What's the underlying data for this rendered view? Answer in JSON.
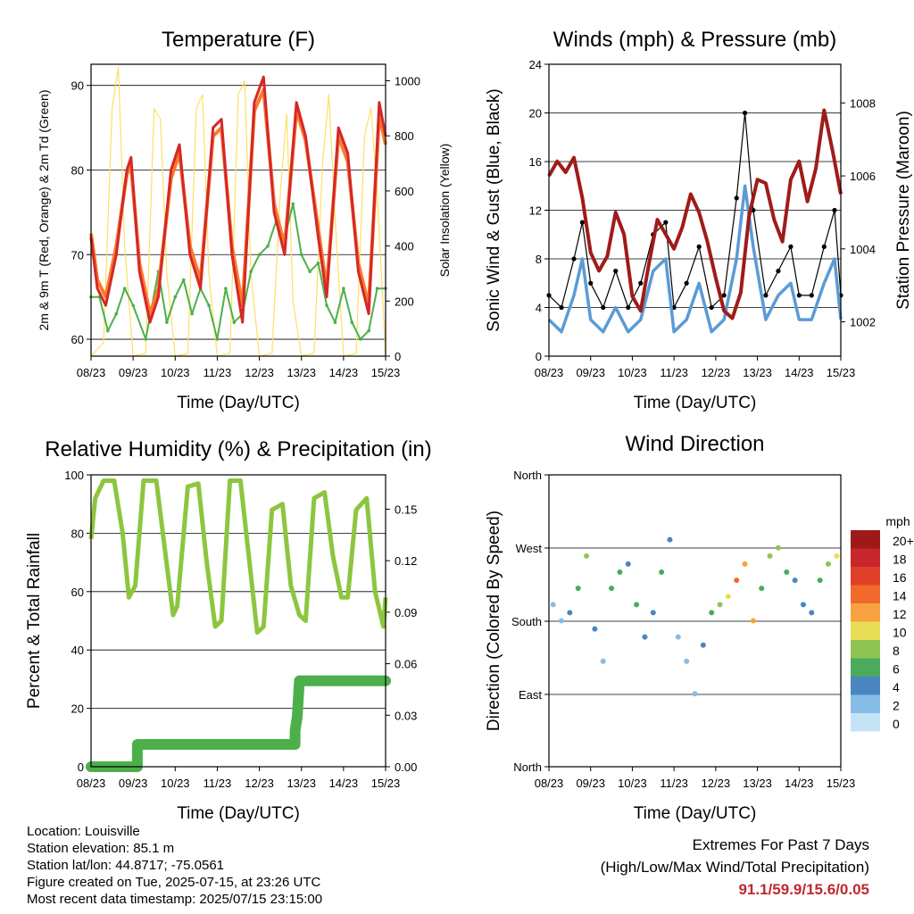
{
  "footer": {
    "location": "Location: Louisville",
    "elevation": "Station elevation: 85.1 m",
    "latlon": "Station lat/lon: 44.8717; -75.0561",
    "created": "Figure created on Tue, 2025-07-15, at 23:26 UTC",
    "recent": "Most recent data timestamp: 2025/07/15 23:15:00",
    "extremes_title": "Extremes For Past 7 Days",
    "extremes_subtitle": "(High/Low/Max Wind/Total Precipitation)",
    "extremes_values": "91.1/59.9/15.6/0.05"
  },
  "colors": {
    "temp_2m": "#d62728",
    "temp_9m": "#f97a2b",
    "dewpoint": "#4daf4a",
    "solar": "#fde062",
    "wind": "#5b9bd5",
    "gust": "#000000",
    "pressure": "#a01b1b",
    "rh": "#8cc63f",
    "precip": "#4daf4a"
  },
  "chart_data": [
    {
      "type": "line",
      "title": "Temperature (F)",
      "xlabel": "Time (Day/UTC)",
      "ylabel": "2m & 9m T (Red, Orange) & 2m Td (Green)",
      "y2label": "Solar Insolation (Yellow)",
      "xticks": [
        "08/23",
        "09/23",
        "10/23",
        "11/23",
        "12/23",
        "13/23",
        "14/23",
        "15/23"
      ],
      "xlim": [
        0,
        7
      ],
      "ylim": [
        58,
        92.5
      ],
      "yticks": [
        60,
        70,
        80,
        90
      ],
      "y2lim": [
        0,
        1060
      ],
      "y2ticks": [
        0,
        200,
        400,
        600,
        800,
        1000
      ],
      "series": [
        {
          "name": "2m T",
          "color": "#d62728",
          "x": [
            0,
            0.15,
            0.35,
            0.6,
            0.85,
            0.95,
            1.15,
            1.4,
            1.6,
            1.9,
            2.1,
            2.35,
            2.6,
            2.9,
            3.1,
            3.35,
            3.6,
            3.88,
            4.1,
            4.35,
            4.6,
            4.88,
            5.1,
            5.4,
            5.6,
            5.88,
            6.1,
            6.35,
            6.6,
            6.85,
            7
          ],
          "values": [
            72,
            66,
            64,
            70,
            80,
            81.5,
            68,
            62,
            65,
            80,
            83,
            70,
            66,
            85,
            86,
            70,
            62,
            88,
            91,
            75,
            70,
            88,
            84,
            72,
            65,
            85,
            82,
            68,
            63,
            88,
            84
          ]
        },
        {
          "name": "9m T",
          "color": "#f97a2b",
          "x": [
            0,
            0.15,
            0.35,
            0.6,
            0.85,
            0.95,
            1.15,
            1.4,
            1.6,
            1.9,
            2.1,
            2.35,
            2.6,
            2.9,
            3.1,
            3.35,
            3.6,
            3.88,
            4.1,
            4.35,
            4.6,
            4.88,
            5.1,
            5.4,
            5.6,
            5.88,
            6.1,
            6.35,
            6.6,
            6.85,
            7
          ],
          "values": [
            72.5,
            67,
            65,
            71,
            79.5,
            80.5,
            69,
            63,
            66,
            79,
            82,
            71,
            67,
            84,
            85,
            71,
            64,
            87,
            89.5,
            76,
            71,
            87,
            83.5,
            73,
            66,
            84,
            81,
            69,
            64,
            86.5,
            83
          ]
        },
        {
          "name": "2m Td",
          "color": "#4daf4a",
          "x": [
            0,
            0.2,
            0.4,
            0.6,
            0.8,
            1.0,
            1.3,
            1.6,
            1.8,
            2.0,
            2.2,
            2.4,
            2.6,
            2.8,
            3.0,
            3.2,
            3.4,
            3.6,
            3.8,
            4.0,
            4.2,
            4.4,
            4.6,
            4.8,
            5.0,
            5.2,
            5.4,
            5.6,
            5.8,
            6.0,
            6.2,
            6.4,
            6.6,
            6.8,
            7
          ],
          "values": [
            65,
            65,
            61,
            63,
            66,
            64,
            60,
            68,
            62,
            65,
            67,
            63,
            66,
            64,
            60,
            66,
            62,
            63,
            68,
            70,
            71,
            74,
            72,
            76,
            70,
            68,
            69,
            64,
            62,
            66,
            62,
            60,
            61,
            66,
            66
          ]
        },
        {
          "name": "Solar Insolation",
          "axis": "y2",
          "color": "#fde062",
          "x": [
            0,
            0.3,
            0.5,
            0.65,
            0.8,
            1.0,
            1.3,
            1.5,
            1.65,
            1.8,
            2.0,
            2.3,
            2.5,
            2.65,
            2.8,
            3.0,
            3.3,
            3.5,
            3.65,
            3.8,
            4.0,
            4.3,
            4.5,
            4.65,
            4.8,
            5.0,
            5.3,
            5.5,
            5.65,
            5.8,
            6.0,
            6.3,
            6.5,
            6.65,
            6.8,
            7
          ],
          "values": [
            0,
            50,
            900,
            1050,
            400,
            0,
            10,
            900,
            860,
            300,
            0,
            10,
            900,
            950,
            300,
            0,
            10,
            950,
            1000,
            300,
            0,
            10,
            600,
            880,
            200,
            0,
            10,
            700,
            950,
            500,
            0,
            10,
            800,
            900,
            600,
            0
          ]
        }
      ]
    },
    {
      "type": "line",
      "title": "Winds (mph) & Pressure (mb)",
      "xlabel": "Time (Day/UTC)",
      "ylabel": "Sonic Wind & Gust (Blue, Black)",
      "y2label": "Station Pressure (Maroon)",
      "xticks": [
        "08/23",
        "09/23",
        "10/23",
        "11/23",
        "12/23",
        "13/23",
        "14/23",
        "15/23"
      ],
      "xlim": [
        0,
        7
      ],
      "ylim": [
        0,
        24
      ],
      "yticks": [
        0,
        4,
        8,
        12,
        16,
        20,
        24
      ],
      "y2lim": [
        1001.06,
        1009.06
      ],
      "y2ticks": [
        1002,
        1004,
        1006,
        1008
      ],
      "series": [
        {
          "name": "Sonic Wind",
          "color": "#5b9bd5",
          "x": [
            0,
            0.3,
            0.6,
            0.8,
            1.0,
            1.3,
            1.6,
            1.9,
            2.2,
            2.5,
            2.8,
            3.0,
            3.3,
            3.6,
            3.9,
            4.2,
            4.5,
            4.7,
            4.9,
            5.2,
            5.5,
            5.8,
            6.0,
            6.3,
            6.6,
            6.85,
            7
          ],
          "values": [
            3,
            2,
            5,
            8,
            3,
            2,
            4,
            2,
            3,
            7,
            8,
            2,
            3,
            6,
            2,
            3,
            8,
            14,
            9,
            3,
            5,
            6,
            3,
            3,
            6,
            8,
            3
          ]
        },
        {
          "name": "Gust",
          "color": "#000000",
          "x": [
            0,
            0.3,
            0.6,
            0.8,
            1.0,
            1.3,
            1.6,
            1.9,
            2.2,
            2.5,
            2.8,
            3.0,
            3.3,
            3.6,
            3.9,
            4.2,
            4.5,
            4.7,
            4.9,
            5.2,
            5.5,
            5.8,
            6.0,
            6.3,
            6.6,
            6.85,
            7
          ],
          "values": [
            5,
            4,
            8,
            11,
            6,
            4,
            7,
            4,
            6,
            10,
            11,
            4,
            6,
            9,
            4,
            5,
            13,
            20,
            12,
            5,
            7,
            9,
            5,
            5,
            9,
            12,
            5
          ]
        },
        {
          "name": "Station Pressure",
          "axis": "y2",
          "color": "#a01b1b",
          "x": [
            0,
            0.2,
            0.4,
            0.6,
            0.8,
            1.0,
            1.2,
            1.4,
            1.6,
            1.8,
            2.0,
            2.2,
            2.4,
            2.6,
            2.8,
            3.0,
            3.2,
            3.4,
            3.6,
            3.8,
            4.0,
            4.2,
            4.4,
            4.6,
            4.8,
            5.0,
            5.2,
            5.4,
            5.6,
            5.8,
            6.0,
            6.2,
            6.4,
            6.6,
            6.8,
            7
          ],
          "values": [
            1006,
            1006.4,
            1006.1,
            1006.5,
            1005.4,
            1003.9,
            1003.4,
            1003.8,
            1005,
            1004.4,
            1002.7,
            1002.3,
            1003.6,
            1004.8,
            1004.4,
            1004,
            1004.6,
            1005.5,
            1005.0,
            1004.2,
            1003.2,
            1002.3,
            1002.1,
            1002.8,
            1004.9,
            1005.9,
            1005.8,
            1004.8,
            1004.2,
            1005.9,
            1006.4,
            1005.3,
            1006.2,
            1007.8,
            1006.7,
            1005.5
          ]
        }
      ]
    },
    {
      "type": "line",
      "title": "Relative Humidity (%) & Precipitation (in)",
      "xlabel": "Time (Day/UTC)",
      "ylabel": "Percent & Total Rainfall",
      "xticks": [
        "08/23",
        "09/23",
        "10/23",
        "11/23",
        "12/23",
        "13/23",
        "14/23",
        "15/23"
      ],
      "xlim": [
        0,
        7
      ],
      "ylim": [
        0,
        100
      ],
      "yticks": [
        0,
        20,
        40,
        60,
        80,
        100
      ],
      "y2lim": [
        0,
        0.17
      ],
      "y2ticks": [
        "0.00",
        "0.03",
        "0.06",
        "0.09",
        "0.12",
        "0.15"
      ],
      "series": [
        {
          "name": "Relative Humidity",
          "color": "#8cc63f",
          "x": [
            0,
            0.1,
            0.3,
            0.55,
            0.75,
            0.9,
            1.05,
            1.25,
            1.55,
            1.75,
            1.95,
            2.05,
            2.3,
            2.55,
            2.75,
            2.95,
            3.1,
            3.3,
            3.55,
            3.75,
            3.95,
            4.1,
            4.3,
            4.55,
            4.75,
            4.95,
            5.1,
            5.3,
            5.55,
            5.75,
            5.95,
            6.1,
            6.3,
            6.55,
            6.75,
            6.95,
            7
          ],
          "values": [
            78,
            92,
            98,
            98,
            80,
            58,
            62,
            98,
            98,
            75,
            52,
            55,
            96,
            97,
            70,
            48,
            50,
            98,
            98,
            72,
            46,
            48,
            88,
            90,
            62,
            52,
            50,
            92,
            94,
            72,
            58,
            58,
            88,
            92,
            60,
            48,
            58
          ]
        },
        {
          "name": "Total Rainfall",
          "axis": "y2",
          "color": "#4daf4a",
          "x": [
            0,
            1.1,
            1.1,
            4.85,
            4.85,
            4.9,
            4.95,
            5.0,
            7.0
          ],
          "values": [
            0,
            0,
            0.013,
            0.013,
            0.021,
            0.029,
            0.05,
            0.05,
            0.05
          ]
        }
      ]
    },
    {
      "type": "scatter",
      "title": "Wind Direction",
      "xlabel": "Time (Day/UTC)",
      "ylabel": "Direction (Colored By Speed)",
      "xticks": [
        "08/23",
        "09/23",
        "10/23",
        "11/23",
        "12/23",
        "13/23",
        "14/23",
        "15/23"
      ],
      "xlim": [
        0,
        7
      ],
      "yticks": [
        "North",
        "East",
        "South",
        "West",
        "North"
      ],
      "ylim": [
        0,
        360
      ],
      "colorbar": {
        "title": "mph",
        "labels": [
          "20+",
          "18",
          "16",
          "14",
          "12",
          "10",
          "8",
          "6",
          "4",
          "2",
          "0"
        ],
        "colors": [
          "#9e1a1a",
          "#c8262a",
          "#e0402a",
          "#f26a2b",
          "#f8a140",
          "#e8de55",
          "#8fc455",
          "#4caa5f",
          "#4a86c1",
          "#86bde6",
          "#c5e3f7"
        ]
      },
      "series": [
        {
          "name": "Direction",
          "x": [
            0.1,
            0.3,
            0.5,
            0.7,
            0.9,
            1.1,
            1.3,
            1.5,
            1.7,
            1.9,
            2.1,
            2.3,
            2.5,
            2.7,
            2.9,
            3.1,
            3.3,
            3.5,
            3.7,
            3.9,
            4.1,
            4.3,
            4.5,
            4.7,
            4.9,
            5.1,
            5.3,
            5.5,
            5.7,
            5.9,
            6.1,
            6.3,
            6.5,
            6.7,
            6.9
          ],
          "values": [
            200,
            180,
            190,
            220,
            260,
            170,
            130,
            220,
            240,
            250,
            200,
            160,
            190,
            240,
            280,
            160,
            130,
            90,
            150,
            190,
            200,
            210,
            230,
            250,
            180,
            220,
            260,
            270,
            240,
            230,
            200,
            190,
            230,
            250,
            260
          ],
          "speed": [
            2,
            1,
            4,
            6,
            8,
            3,
            2,
            5,
            6,
            4,
            5,
            3,
            4,
            6,
            3,
            2,
            1,
            2,
            4,
            6,
            8,
            9,
            13,
            12,
            11,
            6,
            8,
            7,
            5,
            4,
            4,
            3,
            6,
            8,
            9
          ]
        }
      ]
    }
  ]
}
